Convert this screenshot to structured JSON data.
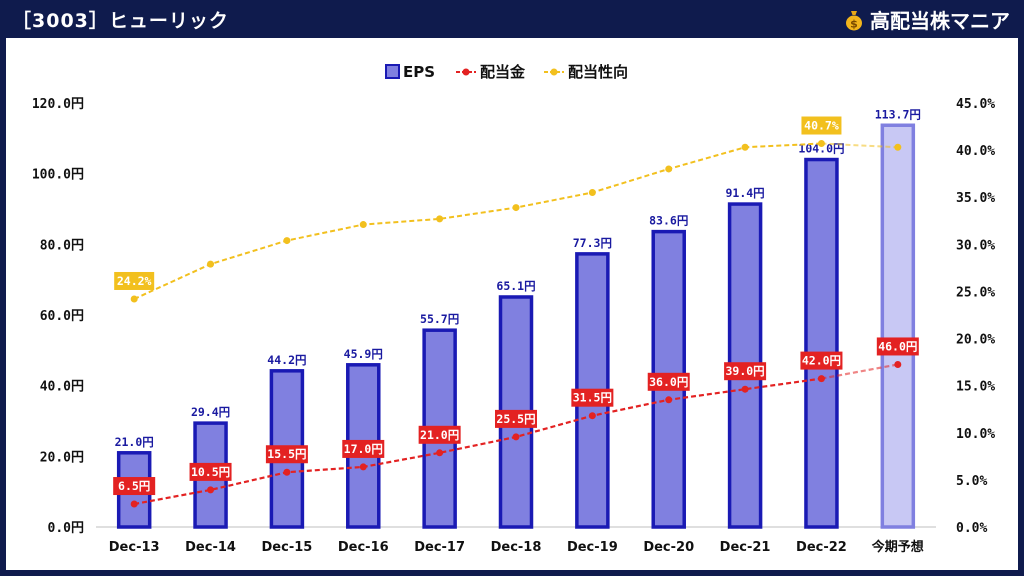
{
  "header": {
    "title": "［3003］ヒューリック",
    "brand": "高配当株マニア",
    "brand_icon": "money-bag-icon"
  },
  "colors": {
    "background": "#0f1b4d",
    "eps_fill": "#8080e0",
    "eps_stroke": "#1a1ab4",
    "eps_forecast_fill": "#c8c8f4",
    "eps_forecast_stroke": "#8080e0",
    "dividend": "#e32222",
    "payout": "#f2c01e"
  },
  "chart_data": {
    "type": "bar",
    "categories": [
      "Dec-13",
      "Dec-14",
      "Dec-15",
      "Dec-16",
      "Dec-17",
      "Dec-18",
      "Dec-19",
      "Dec-20",
      "Dec-21",
      "Dec-22",
      "今期予想"
    ],
    "legend_position": "top-center",
    "y_left": {
      "ylim": [
        0,
        120
      ],
      "ticks": [
        "0.0円",
        "20.0円",
        "40.0円",
        "60.0円",
        "80.0円",
        "100.0円",
        "120.0円"
      ]
    },
    "y_right": {
      "ylim": [
        0,
        45
      ],
      "ticks": [
        "0.0%",
        "5.0%",
        "10.0%",
        "15.0%",
        "20.0%",
        "25.0%",
        "30.0%",
        "35.0%",
        "40.0%",
        "45.0%"
      ]
    },
    "series": [
      {
        "name": "EPS",
        "type": "bar",
        "axis": "left",
        "values": [
          21.0,
          29.4,
          44.2,
          45.9,
          55.7,
          65.1,
          77.3,
          83.6,
          91.4,
          104.0,
          113.7
        ],
        "labels": [
          "21.0円",
          "29.4円",
          "44.2円",
          "45.9円",
          "55.7円",
          "65.1円",
          "77.3円",
          "83.6円",
          "91.4円",
          "104.0円",
          "113.7円"
        ]
      },
      {
        "name": "配当金",
        "type": "line",
        "axis": "left",
        "values": [
          6.5,
          10.5,
          15.5,
          17.0,
          21.0,
          25.5,
          31.5,
          36.0,
          39.0,
          42.0,
          46.0
        ],
        "labels": [
          "6.5円",
          "10.5円",
          "15.5円",
          "17.0円",
          "21.0円",
          "25.5円",
          "31.5円",
          "36.0円",
          "39.0円",
          "42.0円",
          "46.0円"
        ]
      },
      {
        "name": "配当性向",
        "type": "line",
        "axis": "right",
        "values": [
          24.2,
          27.9,
          30.4,
          32.1,
          32.7,
          33.9,
          35.5,
          38.0,
          40.3,
          40.7,
          40.3
        ],
        "labels": [
          "24.2%",
          "",
          "",
          "",
          "",
          "",
          "",
          "",
          "",
          "40.7%",
          ""
        ]
      }
    ]
  }
}
